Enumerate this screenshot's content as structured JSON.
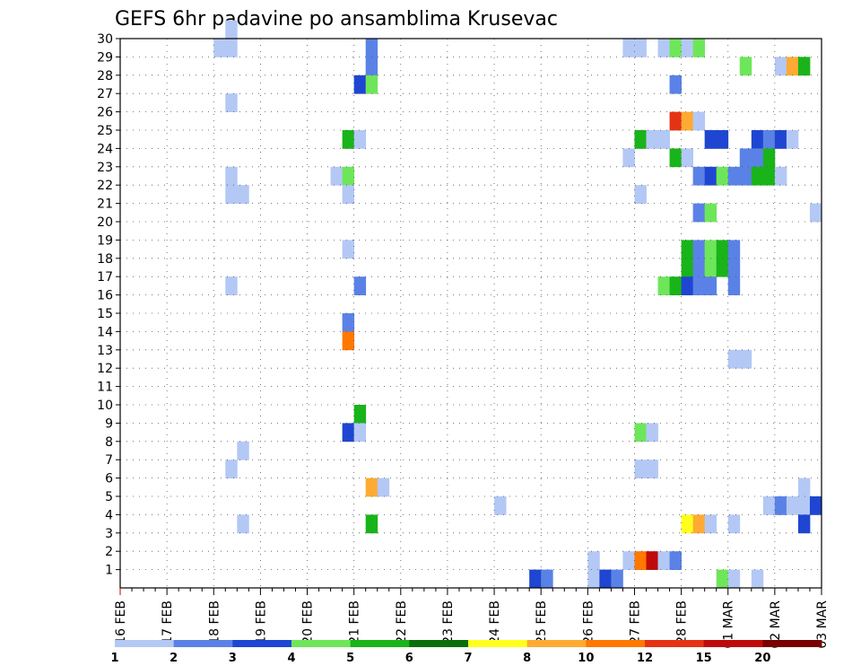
{
  "chart_data": {
    "type": "heatmap",
    "title": "GEFS 6hr padavine po ansamblima Krusevac",
    "x_tick_labels": [
      "16 FEB",
      "17 FEB",
      "18 FEB",
      "19 FEB",
      "20 FEB",
      "21 FEB",
      "22 FEB",
      "23 FEB",
      "24 FEB",
      "25 FEB",
      "26 FEB",
      "27 FEB",
      "28 FEB",
      "01 MAR",
      "02 MAR",
      "03 MAR"
    ],
    "y_tick_labels": [
      "1",
      "2",
      "3",
      "4",
      "5",
      "6",
      "7",
      "8",
      "9",
      "10",
      "11",
      "12",
      "13",
      "14",
      "15",
      "16",
      "17",
      "18",
      "19",
      "20",
      "21",
      "22",
      "23",
      "24",
      "25",
      "26",
      "27",
      "28",
      "29",
      "30"
    ],
    "xlim": [
      "16 FEB",
      "03 MAR"
    ],
    "ylim": [
      0,
      30
    ],
    "steps_per_day": 4,
    "grid": true,
    "legend_position": "bottom",
    "legend": {
      "labels": [
        "1",
        "2",
        "3",
        "4",
        "5",
        "6",
        "7",
        "8",
        "10",
        "12",
        "15",
        "20"
      ],
      "colors": [
        "#b4c8f5",
        "#5a82e6",
        "#1e46d2",
        "#6ee65a",
        "#19b419",
        "#0a6e0a",
        "#ffff1e",
        "#ffaa32",
        "#ff7800",
        "#e63214",
        "#be0a0a",
        "#780000"
      ]
    },
    "cells": [
      {
        "t": "18 FEB 00",
        "m": 29,
        "c": "#b4c8f5"
      },
      {
        "t": "18 FEB 06",
        "m": 29,
        "c": "#b4c8f5"
      },
      {
        "t": "18 FEB 06",
        "m": 30,
        "c": "#b4c8f5"
      },
      {
        "t": "18 FEB 06",
        "m": 26,
        "c": "#b4c8f5"
      },
      {
        "t": "18 FEB 06",
        "m": 22,
        "c": "#b4c8f5"
      },
      {
        "t": "18 FEB 06",
        "m": 21,
        "c": "#b4c8f5"
      },
      {
        "t": "18 FEB 12",
        "m": 21,
        "c": "#b4c8f5"
      },
      {
        "t": "18 FEB 06",
        "m": 16,
        "c": "#b4c8f5"
      },
      {
        "t": "18 FEB 06",
        "m": 6,
        "c": "#b4c8f5"
      },
      {
        "t": "18 FEB 12",
        "m": 7,
        "c": "#b4c8f5"
      },
      {
        "t": "18 FEB 12",
        "m": 3,
        "c": "#b4c8f5"
      },
      {
        "t": "20 FEB 12",
        "m": 22,
        "c": "#b4c8f5"
      },
      {
        "t": "20 FEB 18",
        "m": 24,
        "c": "#19b419"
      },
      {
        "t": "20 FEB 18",
        "m": 22,
        "c": "#6ee65a"
      },
      {
        "t": "20 FEB 18",
        "m": 21,
        "c": "#b4c8f5"
      },
      {
        "t": "20 FEB 18",
        "m": 18,
        "c": "#b4c8f5"
      },
      {
        "t": "20 FEB 18",
        "m": 14,
        "c": "#5a82e6"
      },
      {
        "t": "20 FEB 18",
        "m": 13,
        "c": "#ff7800"
      },
      {
        "t": "20 FEB 18",
        "m": 8,
        "c": "#1e46d2"
      },
      {
        "t": "21 FEB 00",
        "m": 27,
        "c": "#1e46d2"
      },
      {
        "t": "21 FEB 00",
        "m": 24,
        "c": "#b4c8f5"
      },
      {
        "t": "21 FEB 00",
        "m": 16,
        "c": "#5a82e6"
      },
      {
        "t": "21 FEB 00",
        "m": 9,
        "c": "#19b419"
      },
      {
        "t": "21 FEB 00",
        "m": 8,
        "c": "#b4c8f5"
      },
      {
        "t": "21 FEB 06",
        "m": 29,
        "c": "#5a82e6"
      },
      {
        "t": "21 FEB 06",
        "m": 28,
        "c": "#5a82e6"
      },
      {
        "t": "21 FEB 06",
        "m": 27,
        "c": "#6ee65a"
      },
      {
        "t": "21 FEB 06",
        "m": 5,
        "c": "#ffaa32"
      },
      {
        "t": "21 FEB 06",
        "m": 3,
        "c": "#19b419"
      },
      {
        "t": "21 FEB 12",
        "m": 5,
        "c": "#b4c8f5"
      },
      {
        "t": "24 FEB 00",
        "m": 4,
        "c": "#b4c8f5"
      },
      {
        "t": "24 FEB 18",
        "m": 0,
        "c": "#1e46d2"
      },
      {
        "t": "25 FEB 00",
        "m": 0,
        "c": "#5a82e6"
      },
      {
        "t": "26 FEB 00",
        "m": 1,
        "c": "#b4c8f5"
      },
      {
        "t": "26 FEB 00",
        "m": 0,
        "c": "#b4c8f5"
      },
      {
        "t": "26 FEB 06",
        "m": 0,
        "c": "#1e46d2"
      },
      {
        "t": "26 FEB 12",
        "m": 0,
        "c": "#5a82e6"
      },
      {
        "t": "26 FEB 18",
        "m": 29,
        "c": "#b4c8f5"
      },
      {
        "t": "26 FEB 18",
        "m": 23,
        "c": "#b4c8f5"
      },
      {
        "t": "26 FEB 18",
        "m": 1,
        "c": "#b4c8f5"
      },
      {
        "t": "27 FEB 00",
        "m": 29,
        "c": "#b4c8f5"
      },
      {
        "t": "27 FEB 00",
        "m": 24,
        "c": "#19b419"
      },
      {
        "t": "27 FEB 00",
        "m": 21,
        "c": "#b4c8f5"
      },
      {
        "t": "27 FEB 00",
        "m": 8,
        "c": "#6ee65a"
      },
      {
        "t": "27 FEB 00",
        "m": 6,
        "c": "#b4c8f5"
      },
      {
        "t": "27 FEB 00",
        "m": 1,
        "c": "#ff7800"
      },
      {
        "t": "27 FEB 06",
        "m": 24,
        "c": "#b4c8f5"
      },
      {
        "t": "27 FEB 06",
        "m": 8,
        "c": "#b4c8f5"
      },
      {
        "t": "27 FEB 06",
        "m": 6,
        "c": "#b4c8f5"
      },
      {
        "t": "27 FEB 06",
        "m": 1,
        "c": "#be0a0a"
      },
      {
        "t": "27 FEB 12",
        "m": 29,
        "c": "#b4c8f5"
      },
      {
        "t": "27 FEB 12",
        "m": 24,
        "c": "#b4c8f5"
      },
      {
        "t": "27 FEB 12",
        "m": 16,
        "c": "#6ee65a"
      },
      {
        "t": "27 FEB 12",
        "m": 1,
        "c": "#b4c8f5"
      },
      {
        "t": "27 FEB 18",
        "m": 29,
        "c": "#6ee65a"
      },
      {
        "t": "27 FEB 18",
        "m": 27,
        "c": "#5a82e6"
      },
      {
        "t": "27 FEB 18",
        "m": 25,
        "c": "#e63214"
      },
      {
        "t": "27 FEB 18",
        "m": 23,
        "c": "#19b419"
      },
      {
        "t": "27 FEB 18",
        "m": 16,
        "c": "#19b419"
      },
      {
        "t": "27 FEB 18",
        "m": 1,
        "c": "#5a82e6"
      },
      {
        "t": "28 FEB 00",
        "m": 29,
        "c": "#b4c8f5"
      },
      {
        "t": "28 FEB 00",
        "m": 25,
        "c": "#ffaa32"
      },
      {
        "t": "28 FEB 00",
        "m": 23,
        "c": "#b4c8f5"
      },
      {
        "t": "28 FEB 00",
        "m": 18,
        "c": "#19b419"
      },
      {
        "t": "28 FEB 00",
        "m": 17,
        "c": "#19b419"
      },
      {
        "t": "28 FEB 00",
        "m": 16,
        "c": "#1e46d2"
      },
      {
        "t": "28 FEB 00",
        "m": 3,
        "c": "#ffff1e"
      },
      {
        "t": "28 FEB 06",
        "m": 29,
        "c": "#6ee65a"
      },
      {
        "t": "28 FEB 06",
        "m": 25,
        "c": "#b4c8f5"
      },
      {
        "t": "28 FEB 06",
        "m": 22,
        "c": "#5a82e6"
      },
      {
        "t": "28 FEB 06",
        "m": 20,
        "c": "#5a82e6"
      },
      {
        "t": "28 FEB 06",
        "m": 18,
        "c": "#5a82e6"
      },
      {
        "t": "28 FEB 06",
        "m": 17,
        "c": "#5a82e6"
      },
      {
        "t": "28 FEB 06",
        "m": 16,
        "c": "#5a82e6"
      },
      {
        "t": "28 FEB 06",
        "m": 3,
        "c": "#ffaa32"
      },
      {
        "t": "28 FEB 12",
        "m": 24,
        "c": "#1e46d2"
      },
      {
        "t": "28 FEB 12",
        "m": 22,
        "c": "#1e46d2"
      },
      {
        "t": "28 FEB 12",
        "m": 20,
        "c": "#6ee65a"
      },
      {
        "t": "28 FEB 12",
        "m": 18,
        "c": "#6ee65a"
      },
      {
        "t": "28 FEB 12",
        "m": 17,
        "c": "#6ee65a"
      },
      {
        "t": "28 FEB 12",
        "m": 16,
        "c": "#5a82e6"
      },
      {
        "t": "28 FEB 12",
        "m": 3,
        "c": "#b4c8f5"
      },
      {
        "t": "28 FEB 18",
        "m": 24,
        "c": "#1e46d2"
      },
      {
        "t": "28 FEB 18",
        "m": 22,
        "c": "#6ee65a"
      },
      {
        "t": "28 FEB 18",
        "m": 18,
        "c": "#19b419"
      },
      {
        "t": "28 FEB 18",
        "m": 17,
        "c": "#19b419"
      },
      {
        "t": "28 FEB 18",
        "m": 0,
        "c": "#6ee65a"
      },
      {
        "t": "01 MAR 00",
        "m": 22,
        "c": "#5a82e6"
      },
      {
        "t": "01 MAR 00",
        "m": 18,
        "c": "#5a82e6"
      },
      {
        "t": "01 MAR 00",
        "m": 17,
        "c": "#5a82e6"
      },
      {
        "t": "01 MAR 00",
        "m": 16,
        "c": "#5a82e6"
      },
      {
        "t": "01 MAR 00",
        "m": 12,
        "c": "#b4c8f5"
      },
      {
        "t": "01 MAR 00",
        "m": 3,
        "c": "#b4c8f5"
      },
      {
        "t": "01 MAR 00",
        "m": 0,
        "c": "#b4c8f5"
      },
      {
        "t": "01 MAR 06",
        "m": 28,
        "c": "#6ee65a"
      },
      {
        "t": "01 MAR 06",
        "m": 23,
        "c": "#5a82e6"
      },
      {
        "t": "01 MAR 06",
        "m": 22,
        "c": "#5a82e6"
      },
      {
        "t": "01 MAR 06",
        "m": 12,
        "c": "#b4c8f5"
      },
      {
        "t": "01 MAR 12",
        "m": 24,
        "c": "#1e46d2"
      },
      {
        "t": "01 MAR 12",
        "m": 23,
        "c": "#5a82e6"
      },
      {
        "t": "01 MAR 12",
        "m": 22,
        "c": "#19b419"
      },
      {
        "t": "01 MAR 12",
        "m": 0,
        "c": "#b4c8f5"
      },
      {
        "t": "01 MAR 18",
        "m": 24,
        "c": "#5a82e6"
      },
      {
        "t": "01 MAR 18",
        "m": 23,
        "c": "#19b419"
      },
      {
        "t": "01 MAR 18",
        "m": 22,
        "c": "#19b419"
      },
      {
        "t": "01 MAR 18",
        "m": 4,
        "c": "#b4c8f5"
      },
      {
        "t": "02 MAR 00",
        "m": 28,
        "c": "#b4c8f5"
      },
      {
        "t": "02 MAR 00",
        "m": 24,
        "c": "#1e46d2"
      },
      {
        "t": "02 MAR 00",
        "m": 22,
        "c": "#b4c8f5"
      },
      {
        "t": "02 MAR 00",
        "m": 4,
        "c": "#5a82e6"
      },
      {
        "t": "02 MAR 06",
        "m": 28,
        "c": "#ffaa32"
      },
      {
        "t": "02 MAR 06",
        "m": 24,
        "c": "#b4c8f5"
      },
      {
        "t": "02 MAR 06",
        "m": 4,
        "c": "#b4c8f5"
      },
      {
        "t": "02 MAR 12",
        "m": 28,
        "c": "#19b419"
      },
      {
        "t": "02 MAR 12",
        "m": 5,
        "c": "#b4c8f5"
      },
      {
        "t": "02 MAR 12",
        "m": 4,
        "c": "#b4c8f5"
      },
      {
        "t": "02 MAR 12",
        "m": 3,
        "c": "#1e46d2"
      },
      {
        "t": "02 MAR 18",
        "m": 20,
        "c": "#b4c8f5"
      },
      {
        "t": "02 MAR 18",
        "m": 4,
        "c": "#1e46d2"
      }
    ]
  }
}
